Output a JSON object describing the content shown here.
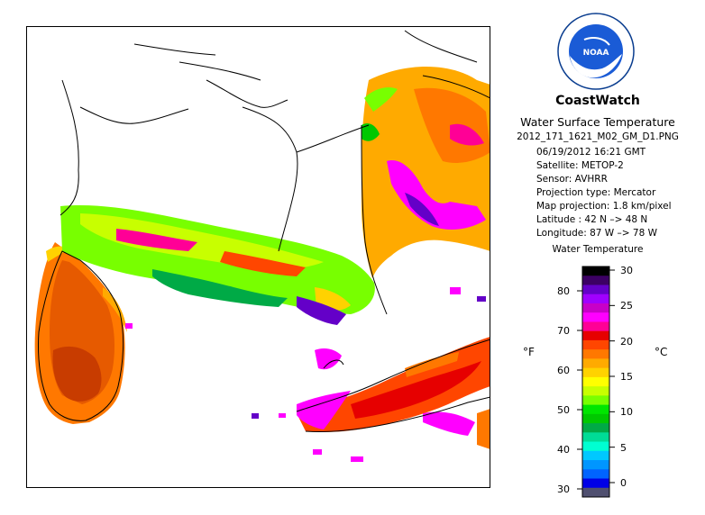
{
  "header": {
    "logo_text": "NOAA",
    "logo_ring_text": "NATIONAL OCEANIC AND ATMOSPHERIC ADMINISTRATION · U.S. DEPARTMENT OF COMMERCE ·",
    "title": "CoastWatch",
    "subtitle": "Water Surface Temperature",
    "filename": "2012_171_1621_M02_GM_D1.PNG"
  },
  "info": {
    "datetime": "06/19/2012   16:21 GMT",
    "satellite": "Satellite: METOP-2",
    "sensor": "Sensor: AVHRR",
    "projection_type": "Projection type:  Mercator",
    "map_projection": "Map projection: 1.8 km/pixel",
    "latitude": "Latitude : 42 N –> 48 N",
    "longitude": "Longitude: 87 W –> 78 W"
  },
  "colorbar": {
    "title": "Water Temperature",
    "unit_f": "°F",
    "unit_c": "°C",
    "f_ticks": [
      "80",
      "70",
      "60",
      "50",
      "40",
      "30"
    ],
    "c_ticks": [
      "30",
      "25",
      "20",
      "15",
      "10",
      "5",
      "0"
    ],
    "colors": [
      "#000000",
      "#3c0064",
      "#6400c8",
      "#a000ff",
      "#c800c8",
      "#ff00ff",
      "#ff0096",
      "#e60000",
      "#ff4600",
      "#ff7800",
      "#ffaa00",
      "#ffd200",
      "#ffff00",
      "#c8ff00",
      "#78ff00",
      "#00e600",
      "#00c800",
      "#00aa46",
      "#00dc96",
      "#00ffd2",
      "#00c8ff",
      "#0096ff",
      "#0064ff",
      "#0000e6",
      "#505070"
    ]
  },
  "map": {
    "colors": {
      "cloud": "#ffffff",
      "ocean_bg": "#ffffff",
      "coast": "#000000",
      "warm": "#ff4600",
      "hot": "#ff00ff",
      "mid": "#ffaa00",
      "cool": "#00c800"
    }
  }
}
